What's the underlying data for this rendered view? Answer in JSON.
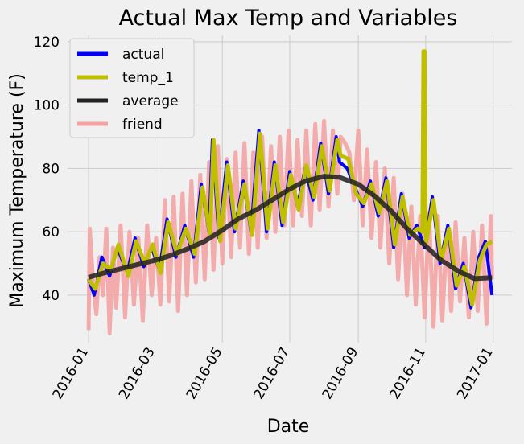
{
  "chart_data": {
    "type": "line",
    "title": "Actual Max Temp and Variables",
    "xlabel": "Date",
    "ylabel": "Maximum Temperature (F)",
    "x_ticks": [
      "2016-01",
      "2016-03",
      "2016-05",
      "2016-07",
      "2016-09",
      "2016-11",
      "2017-01"
    ],
    "y_ticks": [
      40,
      60,
      80,
      100,
      120
    ],
    "xlim": [
      "2015-12-13",
      "2017-01-18"
    ],
    "ylim": [
      25,
      122
    ],
    "grid": true,
    "legend_position": "top-left",
    "series": [
      {
        "name": "actual",
        "color": "#0000ff",
        "points": [
          [
            "2016-01-01",
            45
          ],
          [
            "2016-01-06",
            40
          ],
          [
            "2016-01-13",
            52
          ],
          [
            "2016-01-20",
            46
          ],
          [
            "2016-01-27",
            55
          ],
          [
            "2016-02-05",
            47
          ],
          [
            "2016-02-12",
            58
          ],
          [
            "2016-02-20",
            49
          ],
          [
            "2016-02-27",
            55
          ],
          [
            "2016-03-05",
            48
          ],
          [
            "2016-03-12",
            64
          ],
          [
            "2016-03-20",
            52
          ],
          [
            "2016-03-28",
            62
          ],
          [
            "2016-04-05",
            52
          ],
          [
            "2016-04-12",
            75
          ],
          [
            "2016-04-19",
            60
          ],
          [
            "2016-04-22",
            89
          ],
          [
            "2016-04-28",
            58
          ],
          [
            "2016-05-05",
            82
          ],
          [
            "2016-05-12",
            60
          ],
          [
            "2016-05-20",
            76
          ],
          [
            "2016-05-27",
            60
          ],
          [
            "2016-06-03",
            92
          ],
          [
            "2016-06-10",
            60
          ],
          [
            "2016-06-17",
            82
          ],
          [
            "2016-06-24",
            62
          ],
          [
            "2016-07-01",
            79
          ],
          [
            "2016-07-08",
            68
          ],
          [
            "2016-07-15",
            80
          ],
          [
            "2016-07-22",
            70
          ],
          [
            "2016-07-29",
            88
          ],
          [
            "2016-08-05",
            72
          ],
          [
            "2016-08-12",
            90
          ],
          [
            "2016-08-15",
            82
          ],
          [
            "2016-08-22",
            80
          ],
          [
            "2016-08-29",
            74
          ],
          [
            "2016-09-05",
            68
          ],
          [
            "2016-09-12",
            76
          ],
          [
            "2016-09-19",
            65
          ],
          [
            "2016-09-26",
            77
          ],
          [
            "2016-10-03",
            55
          ],
          [
            "2016-10-10",
            72
          ],
          [
            "2016-10-17",
            58
          ],
          [
            "2016-10-24",
            62
          ],
          [
            "2016-10-31",
            55
          ],
          [
            "2016-11-07",
            71
          ],
          [
            "2016-11-14",
            50
          ],
          [
            "2016-11-21",
            62
          ],
          [
            "2016-11-28",
            42
          ],
          [
            "2016-12-05",
            50
          ],
          [
            "2016-12-12",
            36
          ],
          [
            "2016-12-19",
            52
          ],
          [
            "2016-12-25",
            57
          ],
          [
            "2016-12-31",
            40
          ]
        ]
      },
      {
        "name": "temp_1",
        "color": "#bfbf00",
        "points": [
          [
            "2016-01-01",
            45
          ],
          [
            "2016-01-07",
            42
          ],
          [
            "2016-01-14",
            50
          ],
          [
            "2016-01-21",
            48
          ],
          [
            "2016-01-28",
            56
          ],
          [
            "2016-02-06",
            46
          ],
          [
            "2016-02-13",
            57
          ],
          [
            "2016-02-21",
            50
          ],
          [
            "2016-02-28",
            56
          ],
          [
            "2016-03-06",
            47
          ],
          [
            "2016-03-13",
            63
          ],
          [
            "2016-03-21",
            53
          ],
          [
            "2016-03-29",
            61
          ],
          [
            "2016-04-06",
            53
          ],
          [
            "2016-04-13",
            74
          ],
          [
            "2016-04-20",
            59
          ],
          [
            "2016-04-23",
            89
          ],
          [
            "2016-04-29",
            57
          ],
          [
            "2016-05-06",
            81
          ],
          [
            "2016-05-13",
            61
          ],
          [
            "2016-05-21",
            75
          ],
          [
            "2016-05-28",
            59
          ],
          [
            "2016-06-04",
            91
          ],
          [
            "2016-06-11",
            61
          ],
          [
            "2016-06-18",
            81
          ],
          [
            "2016-06-25",
            63
          ],
          [
            "2016-07-02",
            78
          ],
          [
            "2016-07-09",
            67
          ],
          [
            "2016-07-16",
            81
          ],
          [
            "2016-07-23",
            71
          ],
          [
            "2016-07-30",
            87
          ],
          [
            "2016-08-06",
            73
          ],
          [
            "2016-08-13",
            89
          ],
          [
            "2016-08-16",
            84
          ],
          [
            "2016-08-23",
            83
          ],
          [
            "2016-08-30",
            72
          ],
          [
            "2016-09-06",
            69
          ],
          [
            "2016-09-13",
            75
          ],
          [
            "2016-09-20",
            66
          ],
          [
            "2016-09-27",
            76
          ],
          [
            "2016-10-04",
            56
          ],
          [
            "2016-10-11",
            71
          ],
          [
            "2016-10-18",
            59
          ],
          [
            "2016-10-25",
            61
          ],
          [
            "2016-10-29",
            60
          ],
          [
            "2016-10-30",
            117
          ],
          [
            "2016-10-31",
            117
          ],
          [
            "2016-11-01",
            56
          ],
          [
            "2016-11-08",
            70
          ],
          [
            "2016-11-15",
            51
          ],
          [
            "2016-11-22",
            61
          ],
          [
            "2016-11-29",
            43
          ],
          [
            "2016-12-06",
            49
          ],
          [
            "2016-12-13",
            37
          ],
          [
            "2016-12-20",
            51
          ],
          [
            "2016-12-26",
            56
          ],
          [
            "2016-12-31",
            57
          ]
        ]
      },
      {
        "name": "average",
        "color": "#202020",
        "points": [
          [
            "2016-01-01",
            45.6
          ],
          [
            "2016-01-15",
            47
          ],
          [
            "2016-02-01",
            48.5
          ],
          [
            "2016-02-15",
            49.7
          ],
          [
            "2016-03-01",
            51
          ],
          [
            "2016-03-15",
            52.5
          ],
          [
            "2016-04-01",
            54.8
          ],
          [
            "2016-04-15",
            57
          ],
          [
            "2016-05-01",
            60.5
          ],
          [
            "2016-05-15",
            64
          ],
          [
            "2016-06-01",
            67
          ],
          [
            "2016-06-15",
            70
          ],
          [
            "2016-07-01",
            73.5
          ],
          [
            "2016-07-15",
            76
          ],
          [
            "2016-08-01",
            77.5
          ],
          [
            "2016-08-15",
            77.2
          ],
          [
            "2016-09-01",
            75
          ],
          [
            "2016-09-15",
            71.5
          ],
          [
            "2016-10-01",
            66.5
          ],
          [
            "2016-10-15",
            61
          ],
          [
            "2016-11-01",
            55.5
          ],
          [
            "2016-11-15",
            51
          ],
          [
            "2016-12-01",
            47.5
          ],
          [
            "2016-12-15",
            45.2
          ],
          [
            "2016-12-31",
            45.5
          ]
        ]
      },
      {
        "name": "friend",
        "color": "#f4a3a3",
        "points": [
          [
            "2016-01-01",
            29
          ],
          [
            "2016-01-02",
            61
          ],
          [
            "2016-01-05",
            44
          ],
          [
            "2016-01-08",
            34
          ],
          [
            "2016-01-11",
            52
          ],
          [
            "2016-01-14",
            40
          ],
          [
            "2016-01-17",
            61
          ],
          [
            "2016-01-20",
            28
          ],
          [
            "2016-01-23",
            55
          ],
          [
            "2016-01-26",
            36
          ],
          [
            "2016-01-30",
            62
          ],
          [
            "2016-02-03",
            33
          ],
          [
            "2016-02-07",
            60
          ],
          [
            "2016-02-11",
            37
          ],
          [
            "2016-02-15",
            58
          ],
          [
            "2016-02-19",
            32
          ],
          [
            "2016-02-23",
            62
          ],
          [
            "2016-02-27",
            40
          ],
          [
            "2016-03-02",
            58
          ],
          [
            "2016-03-06",
            37
          ],
          [
            "2016-03-10",
            70
          ],
          [
            "2016-03-14",
            38
          ],
          [
            "2016-03-18",
            71
          ],
          [
            "2016-03-22",
            35
          ],
          [
            "2016-03-26",
            72
          ],
          [
            "2016-03-30",
            40
          ],
          [
            "2016-04-03",
            76
          ],
          [
            "2016-04-07",
            44
          ],
          [
            "2016-04-11",
            78
          ],
          [
            "2016-04-15",
            45
          ],
          [
            "2016-04-19",
            82
          ],
          [
            "2016-04-23",
            48
          ],
          [
            "2016-04-27",
            87
          ],
          [
            "2016-05-01",
            50
          ],
          [
            "2016-05-05",
            83
          ],
          [
            "2016-05-09",
            52
          ],
          [
            "2016-05-13",
            85
          ],
          [
            "2016-05-17",
            55
          ],
          [
            "2016-05-21",
            88
          ],
          [
            "2016-05-25",
            53
          ],
          [
            "2016-05-29",
            85
          ],
          [
            "2016-06-02",
            55
          ],
          [
            "2016-06-06",
            90
          ],
          [
            "2016-06-10",
            58
          ],
          [
            "2016-06-14",
            87
          ],
          [
            "2016-06-18",
            60
          ],
          [
            "2016-06-22",
            90
          ],
          [
            "2016-06-26",
            62
          ],
          [
            "2016-06-30",
            92
          ],
          [
            "2016-07-04",
            62
          ],
          [
            "2016-07-08",
            89
          ],
          [
            "2016-07-12",
            65
          ],
          [
            "2016-07-16",
            92
          ],
          [
            "2016-07-20",
            62
          ],
          [
            "2016-07-24",
            94
          ],
          [
            "2016-07-28",
            67
          ],
          [
            "2016-08-01",
            95
          ],
          [
            "2016-08-05",
            68
          ],
          [
            "2016-08-09",
            92
          ],
          [
            "2016-08-13",
            72
          ],
          [
            "2016-08-16",
            90
          ],
          [
            "2016-08-20",
            88
          ],
          [
            "2016-08-24",
            85
          ],
          [
            "2016-08-28",
            70
          ],
          [
            "2016-09-01",
            92
          ],
          [
            "2016-09-05",
            62
          ],
          [
            "2016-09-09",
            86
          ],
          [
            "2016-09-13",
            58
          ],
          [
            "2016-09-17",
            82
          ],
          [
            "2016-09-21",
            55
          ],
          [
            "2016-09-25",
            80
          ],
          [
            "2016-09-29",
            50
          ],
          [
            "2016-10-03",
            77
          ],
          [
            "2016-10-07",
            45
          ],
          [
            "2016-10-11",
            72
          ],
          [
            "2016-10-15",
            40
          ],
          [
            "2016-10-19",
            68
          ],
          [
            "2016-10-23",
            37
          ],
          [
            "2016-10-27",
            65
          ],
          [
            "2016-10-31",
            33
          ],
          [
            "2016-11-04",
            66
          ],
          [
            "2016-11-08",
            30
          ],
          [
            "2016-11-12",
            65
          ],
          [
            "2016-11-16",
            32
          ],
          [
            "2016-11-20",
            60
          ],
          [
            "2016-11-24",
            35
          ],
          [
            "2016-11-28",
            63
          ],
          [
            "2016-12-02",
            38
          ],
          [
            "2016-12-06",
            58
          ],
          [
            "2016-12-10",
            33
          ],
          [
            "2016-12-14",
            60
          ],
          [
            "2016-12-18",
            35
          ],
          [
            "2016-12-22",
            62
          ],
          [
            "2016-12-26",
            31
          ],
          [
            "2016-12-30",
            65
          ],
          [
            "2016-12-31",
            45
          ]
        ]
      }
    ]
  }
}
